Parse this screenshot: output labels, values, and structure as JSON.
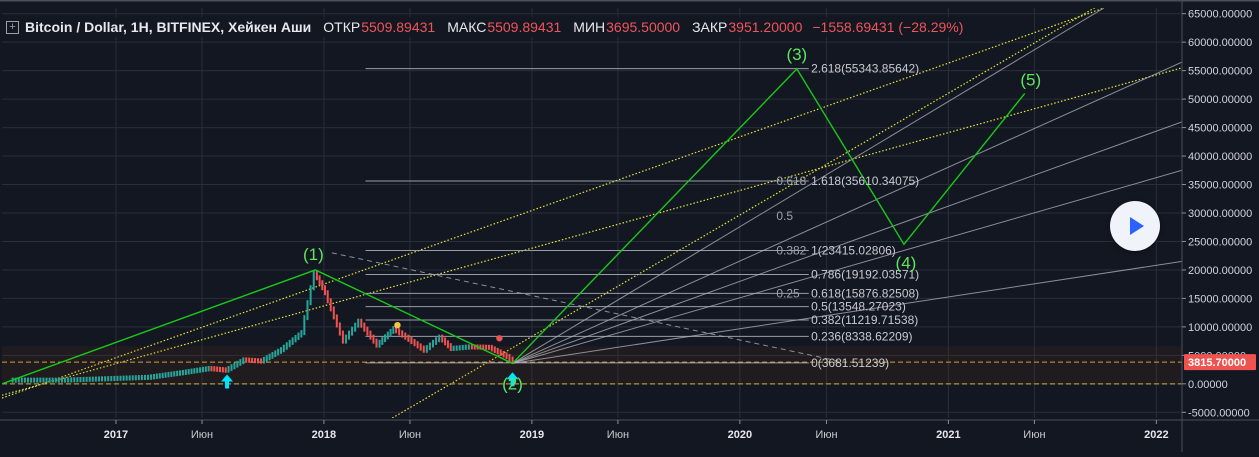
{
  "header": {
    "symbol": "Bitcoin / Dollar, 1H, BITFINEX, Хейкен Аши",
    "open_label": "ОТКР",
    "open_value": "5509.89431",
    "high_label": "МАКС",
    "high_value": "5509.89431",
    "low_label": "МИН",
    "low_value": "3695.50000",
    "close_label": "ЗАКР",
    "close_value": "3951.20000",
    "change": "−1558.69431 (−28.29%)"
  },
  "play_button": {
    "icon": "play-icon"
  },
  "colors": {
    "background": "#131722",
    "grid": "#2a2e39",
    "up": "#26a69a",
    "down": "#ef5350",
    "wave": "#19c919",
    "wave_label": "#5ee65e",
    "channel": "#e6e63a",
    "fib": "#b2b5be",
    "current_price": "#ef5350",
    "arrow": "#00e5ff"
  },
  "chart_data": {
    "type": "line",
    "y_axis": {
      "ylim": [
        -6000,
        66000
      ],
      "ticks": [
        65000,
        60000,
        55000,
        50000,
        45000,
        40000,
        35000,
        30000,
        25000,
        20000,
        15000,
        10000,
        5000,
        0,
        -5000
      ],
      "tick_labels": [
        "65000.00000",
        "60000.00000",
        "55000.00000",
        "50000.00000",
        "45000.00000",
        "40000.00000",
        "35000.00000",
        "30000.00000",
        "25000.00000",
        "20000.00000",
        "15000.00000",
        "10000.00000",
        "5000.00000",
        "0.00000",
        "-5000.00000"
      ]
    },
    "x_axis": {
      "range": [
        "2016-06-15",
        "2022-02-15"
      ],
      "ticks": [
        {
          "date": "2017-01-01",
          "label": "2017",
          "major": true
        },
        {
          "date": "2017-06-01",
          "label": "Июн",
          "major": false
        },
        {
          "date": "2018-01-01",
          "label": "2018",
          "major": true
        },
        {
          "date": "2018-06-01",
          "label": "Июн",
          "major": false
        },
        {
          "date": "2019-01-01",
          "label": "2019",
          "major": true
        },
        {
          "date": "2019-06-01",
          "label": "Июн",
          "major": false
        },
        {
          "date": "2020-01-01",
          "label": "2020",
          "major": true
        },
        {
          "date": "2020-06-01",
          "label": "Июн",
          "major": false
        },
        {
          "date": "2021-01-01",
          "label": "2021",
          "major": true
        },
        {
          "date": "2021-06-01",
          "label": "Июн",
          "major": false
        },
        {
          "date": "2022-01-01",
          "label": "2022",
          "major": true
        }
      ]
    },
    "price_series": [
      {
        "date": "2016-07-01",
        "value": 650
      },
      {
        "date": "2016-10-01",
        "value": 650
      },
      {
        "date": "2017-01-01",
        "value": 950
      },
      {
        "date": "2017-03-01",
        "value": 1150
      },
      {
        "date": "2017-05-01",
        "value": 2000
      },
      {
        "date": "2017-06-15",
        "value": 2700
      },
      {
        "date": "2017-07-15",
        "value": 2400
      },
      {
        "date": "2017-08-15",
        "value": 4200
      },
      {
        "date": "2017-09-15",
        "value": 4000
      },
      {
        "date": "2017-10-20",
        "value": 6000
      },
      {
        "date": "2017-11-25",
        "value": 9000
      },
      {
        "date": "2017-12-17",
        "value": 19500
      },
      {
        "date": "2018-01-05",
        "value": 16000
      },
      {
        "date": "2018-02-06",
        "value": 7500
      },
      {
        "date": "2018-03-05",
        "value": 11000
      },
      {
        "date": "2018-04-06",
        "value": 6800
      },
      {
        "date": "2018-05-05",
        "value": 9700
      },
      {
        "date": "2018-06-28",
        "value": 5900
      },
      {
        "date": "2018-07-25",
        "value": 8200
      },
      {
        "date": "2018-08-14",
        "value": 6200
      },
      {
        "date": "2018-09-15",
        "value": 6500
      },
      {
        "date": "2018-10-20",
        "value": 6400
      },
      {
        "date": "2018-11-20",
        "value": 4800
      },
      {
        "date": "2018-12-01",
        "value": 3900
      }
    ],
    "current_price": {
      "value": 3815.7,
      "label": "3815.70000"
    },
    "zero_line": 0,
    "waves": {
      "points": [
        {
          "date": "2016-06-15",
          "value": 0
        },
        {
          "date": "2017-12-17",
          "value": 20000,
          "label": "(1)"
        },
        {
          "date": "2018-11-28",
          "value": 3600,
          "label": "(2)"
        },
        {
          "date": "2020-04-10",
          "value": 55300,
          "label": "(3)"
        },
        {
          "date": "2020-10-15",
          "value": 24500,
          "label": "(4)"
        },
        {
          "date": "2021-05-15",
          "value": 51000,
          "label": "(5)"
        }
      ]
    },
    "fib_levels": [
      {
        "label": "2.618(55343.85642)",
        "value": 55343.85642
      },
      {
        "label": "1.618(35610.34075)",
        "value": 35610.34075
      },
      {
        "label": "1(23415.02806)",
        "value": 23415.02806
      },
      {
        "label": "0.786(19192.03571)",
        "value": 19192.03571
      },
      {
        "label": "0.618(15876.82508)",
        "value": 15876.82508
      },
      {
        "label": "0.5(13548.27023)",
        "value": 13548.27023
      },
      {
        "label": "0.382(11219.71538)",
        "value": 11219.71538
      },
      {
        "label": "0.236(8338.62209)",
        "value": 8338.62209
      },
      {
        "label": "0(3681.51239)",
        "value": 3681.51239
      }
    ],
    "fan_labels": [
      {
        "label": "0.618",
        "value": 35610
      },
      {
        "label": "0.5",
        "value": 29500
      },
      {
        "label": "0.382",
        "value": 23415
      },
      {
        "label": "0.25",
        "value": 15876
      }
    ],
    "fan_origin": {
      "date": "2018-11-28",
      "value": 3600
    },
    "fan_targets": [
      {
        "date": "2021-10-01",
        "value": 66000
      },
      {
        "date": "2022-02-15",
        "value": 56500
      },
      {
        "date": "2022-02-15",
        "value": 46000
      },
      {
        "date": "2022-02-15",
        "value": 37500
      },
      {
        "date": "2022-02-15",
        "value": 21500
      }
    ],
    "channel_lines": [
      {
        "from": {
          "date": "2016-06-15",
          "value": -2500
        },
        "to": {
          "date": "2021-10-01",
          "value": 66000
        }
      },
      {
        "from": {
          "date": "2016-06-15",
          "value": -2000
        },
        "to": {
          "date": "2022-02-15",
          "value": 55500
        }
      },
      {
        "from": {
          "date": "2018-05-01",
          "value": -6000
        },
        "to": {
          "date": "2022-02-15",
          "value": 75000
        }
      }
    ],
    "dashed_trend": {
      "from": {
        "date": "2018-01-15",
        "value": 23000
      },
      "to": {
        "date": "2020-07-01",
        "value": 3800
      }
    },
    "markers": [
      {
        "date": "2017-07-15",
        "value": 400,
        "type": "arrow-up"
      },
      {
        "date": "2018-11-28",
        "value": 800,
        "type": "arrow-up"
      },
      {
        "date": "2018-05-10",
        "value": 10300,
        "type": "dot",
        "color": "#f5c542"
      },
      {
        "date": "2018-11-05",
        "value": 8000,
        "type": "dot",
        "color": "#ef5350"
      }
    ]
  }
}
